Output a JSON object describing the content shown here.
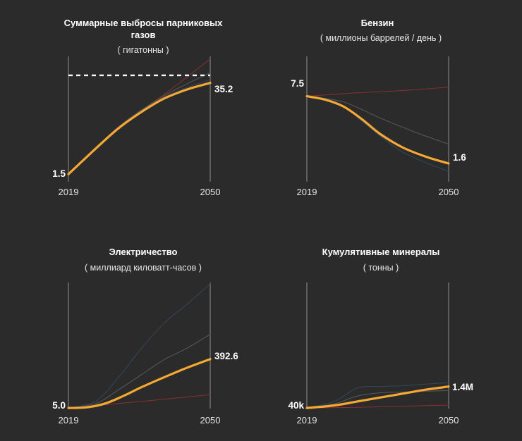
{
  "colors": {
    "background": "#2b2b2b",
    "highlight": "#f5a833",
    "axis": "#6e6e6e",
    "reference_line": "#ffffff"
  },
  "chart_data": [
    {
      "id": "emissions",
      "type": "line",
      "title_lines": [
        "Суммарные выбросы парниковых",
        "газов"
      ],
      "subtitle": "( гигатонны )",
      "x": [
        2019,
        2050
      ],
      "x_tick_labels": [
        "2019",
        "2050"
      ],
      "ylim": [
        0,
        45
      ],
      "start_label": "1.5",
      "end_label": "35.2",
      "reference_line": {
        "value": 38,
        "style": "dashed"
      },
      "series": [
        {
          "name": "highlight",
          "role": "highlight",
          "color": "#f5a833",
          "points": [
            [
              2019,
              1.5
            ],
            [
              2025,
              11
            ],
            [
              2030,
              18.5
            ],
            [
              2035,
              24.5
            ],
            [
              2040,
              29.5
            ],
            [
              2045,
              32.8
            ],
            [
              2050,
              35.2
            ]
          ]
        },
        {
          "name": "scenario-1",
          "role": "background",
          "color": "#8a2f33",
          "points": [
            [
              2019,
              1.5
            ],
            [
              2030,
              19
            ],
            [
              2040,
              31
            ],
            [
              2050,
              44
            ]
          ]
        },
        {
          "name": "scenario-2",
          "role": "background",
          "color": "#5a5a5a",
          "points": [
            [
              2019,
              1.5
            ],
            [
              2030,
              19
            ],
            [
              2040,
              30.5
            ],
            [
              2050,
              39
            ]
          ]
        },
        {
          "name": "scenario-3",
          "role": "background",
          "color": "#34475c",
          "points": [
            [
              2019,
              1.5
            ],
            [
              2030,
              18.8
            ],
            [
              2040,
              30
            ],
            [
              2050,
              36.5
            ]
          ]
        }
      ]
    },
    {
      "id": "gasoline",
      "type": "line",
      "title_lines": [
        "Бензин"
      ],
      "subtitle": "( миллионы баррелей / день )",
      "x": [
        2019,
        2050
      ],
      "x_tick_labels": [
        "2019",
        "2050"
      ],
      "ylim": [
        0,
        11
      ],
      "start_label": "7.5",
      "end_label": "1.6",
      "series": [
        {
          "name": "highlight",
          "role": "highlight",
          "color": "#f5a833",
          "points": [
            [
              2019,
              7.5
            ],
            [
              2023,
              7.2
            ],
            [
              2027,
              6.6
            ],
            [
              2031,
              5.5
            ],
            [
              2035,
              4.2
            ],
            [
              2040,
              3.0
            ],
            [
              2045,
              2.2
            ],
            [
              2050,
              1.6
            ]
          ]
        },
        {
          "name": "scenario-1",
          "role": "background",
          "color": "#8a2f33",
          "points": [
            [
              2019,
              7.5
            ],
            [
              2030,
              7.8
            ],
            [
              2040,
              8.0
            ],
            [
              2050,
              8.3
            ]
          ]
        },
        {
          "name": "scenario-2",
          "role": "background",
          "color": "#5a5a5a",
          "points": [
            [
              2019,
              7.5
            ],
            [
              2027,
              7.0
            ],
            [
              2035,
              5.6
            ],
            [
              2043,
              4.3
            ],
            [
              2050,
              3.3
            ]
          ]
        },
        {
          "name": "scenario-3",
          "role": "background",
          "color": "#34475c",
          "points": [
            [
              2019,
              7.5
            ],
            [
              2026,
              6.9
            ],
            [
              2032,
              5.0
            ],
            [
              2040,
              2.6
            ],
            [
              2050,
              0.9
            ]
          ]
        }
      ]
    },
    {
      "id": "electricity",
      "type": "line",
      "title_lines": [
        "Электричество"
      ],
      "subtitle": "( миллиард киловатт-часов )",
      "x": [
        2019,
        2050
      ],
      "x_tick_labels": [
        "2019",
        "2050"
      ],
      "ylim": [
        0,
        1000
      ],
      "start_label": "5.0",
      "end_label": "392.6",
      "series": [
        {
          "name": "highlight",
          "role": "highlight",
          "color": "#f5a833",
          "points": [
            [
              2019,
              5
            ],
            [
              2023,
              10
            ],
            [
              2027,
              40
            ],
            [
              2031,
              100
            ],
            [
              2035,
              170
            ],
            [
              2040,
              250
            ],
            [
              2045,
              325
            ],
            [
              2050,
              392.6
            ]
          ]
        },
        {
          "name": "scenario-1",
          "role": "background",
          "color": "#8a2f33",
          "points": [
            [
              2019,
              5
            ],
            [
              2030,
              40
            ],
            [
              2040,
              75
            ],
            [
              2050,
              110
            ]
          ]
        },
        {
          "name": "scenario-2",
          "role": "background",
          "color": "#5a5a5a",
          "points": [
            [
              2019,
              5
            ],
            [
              2025,
              40
            ],
            [
              2030,
              150
            ],
            [
              2035,
              270
            ],
            [
              2040,
              390
            ],
            [
              2045,
              480
            ],
            [
              2050,
              590
            ]
          ]
        },
        {
          "name": "scenario-3",
          "role": "background",
          "color": "#34475c",
          "points": [
            [
              2019,
              5
            ],
            [
              2025,
              60
            ],
            [
              2030,
              250
            ],
            [
              2035,
              480
            ],
            [
              2040,
              680
            ],
            [
              2045,
              830
            ],
            [
              2050,
              990
            ]
          ]
        }
      ]
    },
    {
      "id": "minerals",
      "type": "line",
      "title_lines": [
        "Кумулятивные минералы"
      ],
      "subtitle": "( тонны )",
      "x": [
        2019,
        2050
      ],
      "x_tick_labels": [
        "2019",
        "2050"
      ],
      "ylim": [
        0,
        8000000
      ],
      "start_label": "40k",
      "end_label": "1.4M",
      "series": [
        {
          "name": "highlight",
          "role": "highlight",
          "color": "#f5a833",
          "points": [
            [
              2019,
              40000
            ],
            [
              2025,
              200000
            ],
            [
              2030,
              450000
            ],
            [
              2035,
              700000
            ],
            [
              2040,
              950000
            ],
            [
              2045,
              1200000
            ],
            [
              2050,
              1400000
            ]
          ]
        },
        {
          "name": "scenario-1",
          "role": "background",
          "color": "#8a2f33",
          "points": [
            [
              2019,
              40000
            ],
            [
              2030,
              80000
            ],
            [
              2040,
              150000
            ],
            [
              2050,
              220000
            ]
          ]
        },
        {
          "name": "scenario-2",
          "role": "background",
          "color": "#5a5a5a",
          "points": [
            [
              2019,
              40000
            ],
            [
              2025,
              300000
            ],
            [
              2030,
              800000
            ],
            [
              2035,
              1000000
            ],
            [
              2040,
              1050000
            ],
            [
              2045,
              1100000
            ],
            [
              2050,
              1150000
            ]
          ]
        },
        {
          "name": "scenario-3",
          "role": "background",
          "color": "#34475c",
          "points": [
            [
              2019,
              40000
            ],
            [
              2025,
              450000
            ],
            [
              2030,
              1300000
            ],
            [
              2035,
              1400000
            ],
            [
              2040,
              1450000
            ],
            [
              2045,
              1550000
            ],
            [
              2050,
              1650000
            ]
          ]
        }
      ]
    }
  ]
}
